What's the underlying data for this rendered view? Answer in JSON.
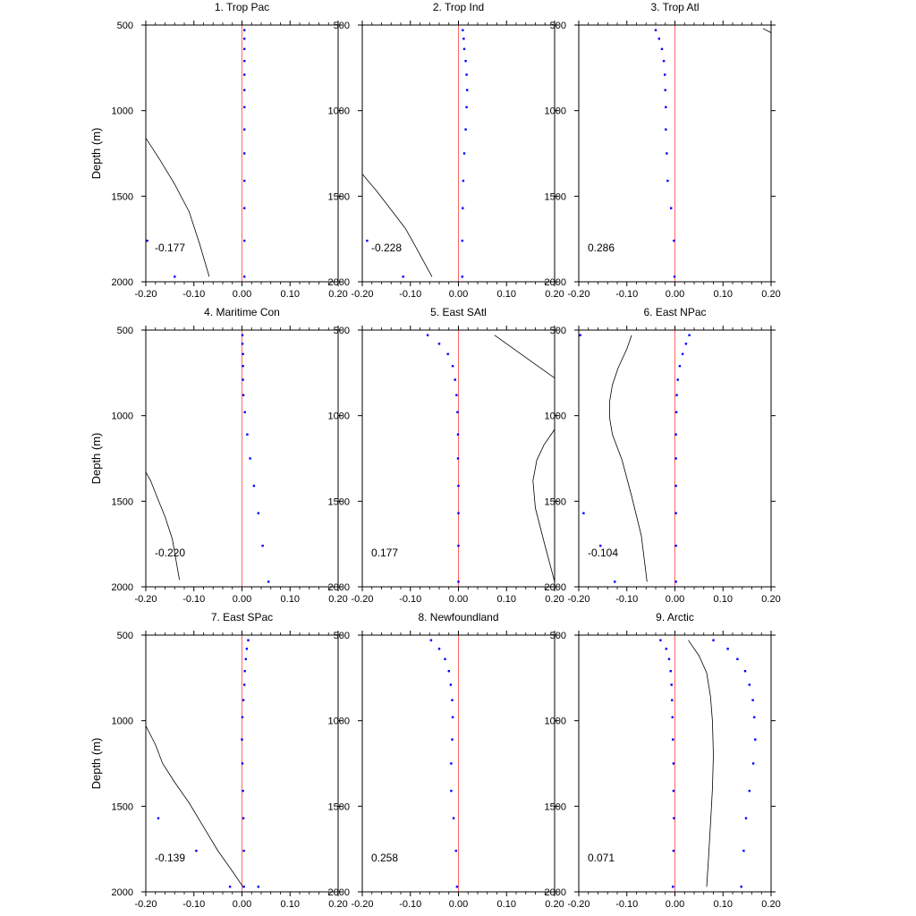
{
  "chart_data": {
    "type": "line",
    "ylabel": "Depth (m)",
    "xlim": [
      -0.2,
      0.2
    ],
    "ylim": [
      500,
      2000
    ],
    "y_inverted": true,
    "x_ticks": [
      -0.2,
      -0.1,
      0.0,
      0.1,
      0.2
    ],
    "x_tick_labels": [
      "-0.20",
      "-0.10",
      "0.00",
      "0.10",
      "0.20"
    ],
    "y_ticks": [
      500,
      1000,
      1500,
      2000
    ],
    "y_tick_labels": [
      "500",
      "1000",
      "1500",
      "2000"
    ],
    "grid": false,
    "reference_line": {
      "x": 0.0,
      "color": "#ff6666"
    },
    "line_color": "#000000",
    "dot_color": "#0000ff",
    "panels": [
      {
        "title": "1. Trop Pac",
        "annotation": "-0.177",
        "line": {
          "x": [
            -0.2,
            -0.17,
            -0.14,
            -0.11,
            -0.088,
            -0.068
          ],
          "y": [
            1160,
            1290,
            1430,
            1590,
            1780,
            1970
          ]
        },
        "dots": [
          {
            "x": [
              0.005,
              0.005,
              0.005,
              0.005,
              0.005,
              0.005,
              0.005,
              0.005,
              0.005,
              0.005,
              0.005,
              0.005,
              0.005
            ],
            "y": [
              530,
              580,
              640,
              710,
              790,
              880,
              980,
              1110,
              1250,
              1410,
              1570,
              1760,
              1970
            ]
          },
          {
            "x": [
              -0.197,
              -0.14
            ],
            "y": [
              1760,
              1970
            ]
          }
        ]
      },
      {
        "title": "2. Trop Ind",
        "annotation": "-0.228",
        "line": {
          "x": [
            -0.2,
            -0.17,
            -0.14,
            -0.11,
            -0.09,
            -0.055
          ],
          "y": [
            1370,
            1470,
            1580,
            1690,
            1790,
            1970
          ]
        },
        "dots": [
          {
            "x": [
              0.009,
              0.011,
              0.012,
              0.015,
              0.017,
              0.018,
              0.017,
              0.015,
              0.012,
              0.01,
              0.009,
              0.008,
              0.008
            ],
            "y": [
              530,
              580,
              640,
              710,
              790,
              880,
              980,
              1110,
              1250,
              1410,
              1570,
              1760,
              1970
            ]
          },
          {
            "x": [
              -0.19,
              -0.115
            ],
            "y": [
              1760,
              1970
            ]
          }
        ]
      },
      {
        "title": "3. Trop Atl",
        "annotation": "0.286",
        "line": {
          "x": [
            0.183,
            0.2
          ],
          "y": [
            520,
            545
          ]
        },
        "dots": [
          {
            "x": [
              -0.04,
              -0.033,
              -0.027,
              -0.023,
              -0.021,
              -0.02,
              -0.019,
              -0.019,
              -0.017,
              -0.015,
              -0.008,
              -0.002,
              -0.001
            ],
            "y": [
              530,
              580,
              640,
              710,
              790,
              880,
              980,
              1110,
              1250,
              1410,
              1570,
              1760,
              1970
            ]
          }
        ]
      },
      {
        "title": "4. Maritime Con",
        "annotation": "-0.220",
        "line": {
          "x": [
            -0.2,
            -0.19,
            -0.176,
            -0.16,
            -0.145,
            -0.13
          ],
          "y": [
            1330,
            1380,
            1480,
            1590,
            1720,
            1960
          ]
        },
        "dots": [
          {
            "x": [
              0.001,
              0.001,
              0.002,
              0.002,
              0.002,
              0.003,
              0.006,
              0.011,
              0.017,
              0.025,
              0.034,
              0.043,
              0.055
            ],
            "y": [
              530,
              580,
              640,
              710,
              790,
              880,
              980,
              1110,
              1250,
              1410,
              1570,
              1760,
              1970
            ]
          }
        ]
      },
      {
        "title": "5. East SAtl",
        "annotation": "0.177",
        "line": {
          "x": [
            0.075,
            0.1,
            0.13,
            0.16,
            0.18,
            0.2,
            0.2,
            0.178,
            0.163,
            0.155,
            0.16,
            0.18,
            0.2
          ],
          "y": [
            530,
            580,
            640,
            700,
            740,
            780,
            1080,
            1170,
            1260,
            1380,
            1540,
            1760,
            1970
          ]
        },
        "dots": [
          {
            "x": [
              -0.064,
              -0.04,
              -0.022,
              -0.012,
              -0.007,
              -0.004,
              -0.002,
              -0.001,
              -0.001,
              0.0,
              0.0,
              0.0,
              0.0
            ],
            "y": [
              530,
              580,
              640,
              710,
              790,
              880,
              980,
              1110,
              1250,
              1410,
              1570,
              1760,
              1970
            ]
          }
        ]
      },
      {
        "title": "6. East NPac",
        "annotation": "-0.104",
        "line": {
          "x": [
            -0.09,
            -0.1,
            -0.118,
            -0.13,
            -0.136,
            -0.136,
            -0.13,
            -0.11,
            -0.09,
            -0.07,
            -0.058
          ],
          "y": [
            530,
            610,
            720,
            820,
            920,
            1010,
            1110,
            1260,
            1470,
            1700,
            1970
          ]
        },
        "dots": [
          {
            "x": [
              0.03,
              0.023,
              0.016,
              0.01,
              0.006,
              0.004,
              0.003,
              0.002,
              0.002,
              0.002,
              0.002,
              0.002,
              0.002
            ],
            "y": [
              530,
              580,
              640,
              710,
              790,
              880,
              980,
              1110,
              1250,
              1410,
              1570,
              1760,
              1970
            ]
          },
          {
            "x": [
              -0.197,
              -0.19,
              -0.155,
              -0.125
            ],
            "y": [
              530,
              1570,
              1760,
              1970
            ]
          }
        ]
      },
      {
        "title": "7. East SPac",
        "annotation": "-0.139",
        "line": {
          "x": [
            -0.2,
            -0.18,
            -0.165,
            -0.14,
            -0.11,
            -0.08,
            -0.05,
            -0.02,
            0.002
          ],
          "y": [
            1030,
            1140,
            1250,
            1360,
            1480,
            1620,
            1760,
            1880,
            1970
          ]
        },
        "dots": [
          {
            "x": [
              0.013,
              0.01,
              0.008,
              0.006,
              0.005,
              0.003,
              0.001,
              0.0,
              0.001,
              0.002,
              0.003,
              0.004,
              0.004
            ],
            "y": [
              530,
              580,
              640,
              710,
              790,
              880,
              980,
              1110,
              1250,
              1410,
              1570,
              1760,
              1970
            ]
          },
          {
            "x": [
              -0.174,
              -0.095,
              -0.025,
              0.034
            ],
            "y": [
              1570,
              1760,
              1970,
              1970
            ]
          }
        ]
      },
      {
        "title": "8. Newfoundland",
        "annotation": "0.258",
        "line": {
          "x": [],
          "y": []
        },
        "dots": [
          {
            "x": [
              -0.057,
              -0.04,
              -0.028,
              -0.02,
              -0.016,
              -0.013,
              -0.012,
              -0.013,
              -0.015,
              -0.015,
              -0.01,
              -0.005,
              -0.003
            ],
            "y": [
              530,
              580,
              640,
              710,
              790,
              880,
              980,
              1110,
              1250,
              1410,
              1570,
              1760,
              1970
            ]
          }
        ]
      },
      {
        "title": "9. Arctic",
        "annotation": "0.071",
        "line": {
          "x": [
            0.028,
            0.05,
            0.066,
            0.074,
            0.078,
            0.08,
            0.078,
            0.074,
            0.07,
            0.066
          ],
          "y": [
            530,
            620,
            720,
            860,
            1000,
            1200,
            1400,
            1600,
            1800,
            1970
          ]
        },
        "dots": [
          {
            "x": [
              -0.03,
              -0.018,
              -0.012,
              -0.009,
              -0.007,
              -0.006,
              -0.005,
              -0.004,
              -0.003,
              -0.003,
              -0.002,
              -0.003,
              -0.004
            ],
            "y": [
              530,
              580,
              640,
              710,
              790,
              880,
              980,
              1110,
              1250,
              1410,
              1570,
              1760,
              1970
            ]
          },
          {
            "x": [
              0.08,
              0.11,
              0.13,
              0.146,
              0.155,
              0.162,
              0.165,
              0.167,
              0.163,
              0.155,
              0.148,
              0.143,
              0.138
            ],
            "y": [
              530,
              580,
              640,
              710,
              790,
              880,
              980,
              1110,
              1250,
              1410,
              1570,
              1760,
              1970
            ]
          }
        ]
      }
    ]
  }
}
